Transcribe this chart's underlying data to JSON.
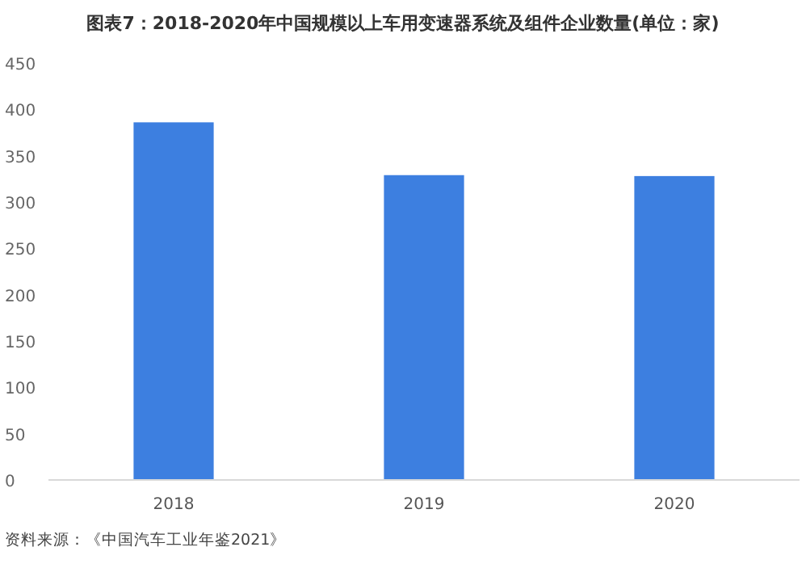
{
  "chart_data": {
    "type": "bar",
    "title": "图表7：2018-2020年中国规模以上车用变速器系统及组件企业数量(单位：家)",
    "categories": [
      "2018",
      "2019",
      "2020"
    ],
    "values": [
      386,
      329,
      328
    ],
    "color": "#3d7fe0",
    "ylim": [
      0,
      450
    ],
    "yticks": [
      0,
      50,
      100,
      150,
      200,
      250,
      300,
      350,
      400,
      450
    ],
    "grid": false,
    "annotations": [
      "资料来源：《中国汽车工业年鉴2021》"
    ]
  }
}
